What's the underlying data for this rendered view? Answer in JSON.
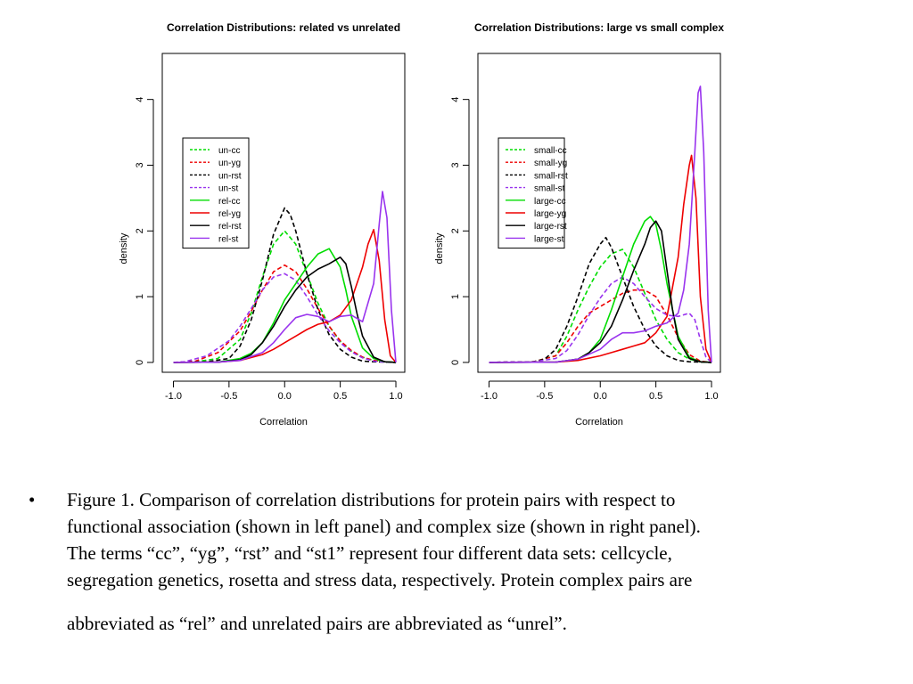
{
  "chart_data": [
    {
      "type": "line",
      "title": "Correlation Distributions: related vs unrelated",
      "xlabel": "Correlation",
      "ylabel": "density",
      "xlim": [
        -1.1,
        1.08
      ],
      "ylim": [
        -0.15,
        4.7
      ],
      "xticks": [
        -1.0,
        -0.5,
        0.0,
        0.5,
        1.0
      ],
      "xtick_labels": [
        "-1.0",
        "-0.5",
        "0.0",
        "0.5",
        "1.0"
      ],
      "yticks": [
        0,
        1,
        2,
        3,
        4
      ],
      "ytick_labels": [
        "0",
        "1",
        "2",
        "3",
        "4"
      ],
      "legend_position": "left",
      "series": [
        {
          "name": "un-cc",
          "color": "#00dd00",
          "dashed": true,
          "x": [
            -1.0,
            -0.8,
            -0.6,
            -0.4,
            -0.3,
            -0.2,
            -0.1,
            0.0,
            0.1,
            0.2,
            0.3,
            0.4,
            0.5,
            0.6,
            0.7,
            0.8,
            0.9,
            1.0
          ],
          "y": [
            0,
            0.01,
            0.06,
            0.35,
            0.75,
            1.3,
            1.8,
            2.0,
            1.8,
            1.35,
            0.9,
            0.55,
            0.32,
            0.17,
            0.08,
            0.03,
            0.01,
            0
          ]
        },
        {
          "name": "un-yg",
          "color": "#ee0000",
          "dashed": true,
          "x": [
            -1.0,
            -0.8,
            -0.6,
            -0.4,
            -0.3,
            -0.2,
            -0.1,
            0.0,
            0.1,
            0.2,
            0.3,
            0.4,
            0.5,
            0.6,
            0.7,
            0.8,
            0.9,
            1.0
          ],
          "y": [
            0,
            0.02,
            0.15,
            0.48,
            0.78,
            1.1,
            1.38,
            1.48,
            1.38,
            1.12,
            0.82,
            0.55,
            0.33,
            0.18,
            0.08,
            0.03,
            0.01,
            0
          ]
        },
        {
          "name": "un-rst",
          "color": "#000000",
          "dashed": true,
          "x": [
            -1.0,
            -0.7,
            -0.5,
            -0.4,
            -0.3,
            -0.2,
            -0.1,
            0.0,
            0.05,
            0.1,
            0.2,
            0.3,
            0.4,
            0.5,
            0.6,
            0.7,
            0.8,
            1.0
          ],
          "y": [
            0,
            0.01,
            0.06,
            0.25,
            0.65,
            1.25,
            1.95,
            2.35,
            2.25,
            2.0,
            1.35,
            0.8,
            0.42,
            0.2,
            0.08,
            0.02,
            0.01,
            0
          ]
        },
        {
          "name": "un-st",
          "color": "#9933ee",
          "dashed": true,
          "x": [
            -1.0,
            -0.9,
            -0.7,
            -0.5,
            -0.4,
            -0.3,
            -0.2,
            -0.1,
            0.0,
            0.1,
            0.2,
            0.3,
            0.4,
            0.5,
            0.6,
            0.7,
            0.8,
            0.9,
            1.0
          ],
          "y": [
            0,
            0.01,
            0.1,
            0.33,
            0.55,
            0.82,
            1.1,
            1.3,
            1.35,
            1.25,
            1.0,
            0.72,
            0.48,
            0.3,
            0.16,
            0.07,
            0.02,
            0.005,
            0
          ]
        },
        {
          "name": "rel-cc",
          "color": "#00dd00",
          "dashed": false,
          "x": [
            -1.0,
            -0.6,
            -0.4,
            -0.3,
            -0.2,
            -0.1,
            0.0,
            0.1,
            0.2,
            0.3,
            0.4,
            0.5,
            0.55,
            0.6,
            0.7,
            0.8,
            0.9,
            1.0
          ],
          "y": [
            0,
            0.005,
            0.06,
            0.14,
            0.3,
            0.6,
            0.95,
            1.2,
            1.45,
            1.65,
            1.73,
            1.45,
            1.1,
            0.7,
            0.22,
            0.06,
            0.01,
            0
          ]
        },
        {
          "name": "rel-yg",
          "color": "#ee0000",
          "dashed": false,
          "x": [
            -1.0,
            -0.6,
            -0.4,
            -0.2,
            -0.1,
            0.0,
            0.1,
            0.2,
            0.3,
            0.4,
            0.5,
            0.6,
            0.7,
            0.75,
            0.8,
            0.85,
            0.9,
            0.95,
            1.0
          ],
          "y": [
            0,
            0.005,
            0.03,
            0.12,
            0.2,
            0.3,
            0.4,
            0.5,
            0.58,
            0.62,
            0.72,
            0.95,
            1.45,
            1.8,
            2.02,
            1.55,
            0.65,
            0.1,
            0
          ]
        },
        {
          "name": "rel-rst",
          "color": "#000000",
          "dashed": false,
          "x": [
            -1.0,
            -0.6,
            -0.4,
            -0.3,
            -0.2,
            -0.1,
            0.0,
            0.1,
            0.2,
            0.3,
            0.4,
            0.5,
            0.55,
            0.6,
            0.65,
            0.7,
            0.8,
            0.9,
            1.0
          ],
          "y": [
            0,
            0.005,
            0.04,
            0.12,
            0.3,
            0.55,
            0.85,
            1.1,
            1.3,
            1.42,
            1.5,
            1.6,
            1.5,
            1.15,
            0.75,
            0.4,
            0.08,
            0.01,
            0
          ]
        },
        {
          "name": "rel-st",
          "color": "#9933ee",
          "dashed": false,
          "x": [
            -1.0,
            -0.6,
            -0.4,
            -0.2,
            -0.1,
            0.0,
            0.1,
            0.2,
            0.3,
            0.4,
            0.5,
            0.6,
            0.7,
            0.8,
            0.85,
            0.88,
            0.92,
            0.96,
            1.0
          ],
          "y": [
            0,
            0.005,
            0.03,
            0.15,
            0.3,
            0.5,
            0.68,
            0.73,
            0.7,
            0.62,
            0.7,
            0.72,
            0.62,
            1.2,
            2.1,
            2.6,
            2.2,
            0.8,
            0
          ]
        }
      ]
    },
    {
      "type": "line",
      "title": "Correlation Distributions: large vs small complex",
      "xlabel": "Correlation",
      "ylabel": "density",
      "xlim": [
        -1.1,
        1.08
      ],
      "ylim": [
        -0.15,
        4.7
      ],
      "xticks": [
        -1.0,
        -0.5,
        0.0,
        0.5,
        1.0
      ],
      "xtick_labels": [
        "-1.0",
        "-0.5",
        "0.0",
        "0.5",
        "1.0"
      ],
      "yticks": [
        0,
        1,
        2,
        3,
        4
      ],
      "ytick_labels": [
        "0",
        "1",
        "2",
        "3",
        "4"
      ],
      "legend_position": "left",
      "series": [
        {
          "name": "small-cc",
          "color": "#00dd00",
          "dashed": true,
          "x": [
            -1.0,
            -0.6,
            -0.4,
            -0.3,
            -0.2,
            -0.1,
            0.0,
            0.1,
            0.2,
            0.3,
            0.4,
            0.5,
            0.6,
            0.7,
            0.8,
            0.9,
            1.0
          ],
          "y": [
            0,
            0.01,
            0.1,
            0.4,
            0.8,
            1.15,
            1.45,
            1.65,
            1.72,
            1.45,
            1.05,
            0.65,
            0.35,
            0.15,
            0.05,
            0.01,
            0
          ]
        },
        {
          "name": "small-yg",
          "color": "#ee0000",
          "dashed": true,
          "x": [
            -1.0,
            -0.6,
            -0.4,
            -0.3,
            -0.2,
            -0.1,
            0.0,
            0.1,
            0.2,
            0.3,
            0.4,
            0.5,
            0.6,
            0.7,
            0.8,
            0.9,
            1.0
          ],
          "y": [
            0,
            0.01,
            0.1,
            0.3,
            0.55,
            0.75,
            0.85,
            0.95,
            1.05,
            1.1,
            1.1,
            1.0,
            0.72,
            0.38,
            0.12,
            0.02,
            0
          ]
        },
        {
          "name": "small-rst",
          "color": "#000000",
          "dashed": true,
          "x": [
            -1.0,
            -0.6,
            -0.5,
            -0.4,
            -0.3,
            -0.2,
            -0.1,
            0.0,
            0.05,
            0.1,
            0.2,
            0.3,
            0.4,
            0.5,
            0.6,
            0.7,
            0.8,
            1.0
          ],
          "y": [
            0,
            0.01,
            0.05,
            0.2,
            0.55,
            1.0,
            1.5,
            1.8,
            1.9,
            1.75,
            1.3,
            0.85,
            0.5,
            0.25,
            0.1,
            0.03,
            0.01,
            0
          ]
        },
        {
          "name": "small-st",
          "color": "#9933ee",
          "dashed": true,
          "x": [
            -1.0,
            -0.6,
            -0.4,
            -0.3,
            -0.2,
            -0.1,
            0.0,
            0.1,
            0.2,
            0.3,
            0.4,
            0.5,
            0.6,
            0.7,
            0.8,
            0.85,
            0.9,
            0.95,
            1.0
          ],
          "y": [
            0,
            0.01,
            0.06,
            0.18,
            0.42,
            0.72,
            0.98,
            1.2,
            1.3,
            1.2,
            1.0,
            0.82,
            0.72,
            0.7,
            0.75,
            0.65,
            0.35,
            0.08,
            0
          ]
        },
        {
          "name": "large-cc",
          "color": "#00dd00",
          "dashed": false,
          "x": [
            -1.0,
            -0.4,
            -0.2,
            -0.1,
            0.0,
            0.1,
            0.2,
            0.3,
            0.4,
            0.45,
            0.5,
            0.55,
            0.6,
            0.7,
            0.8,
            0.9,
            1.0
          ],
          "y": [
            0,
            0.005,
            0.05,
            0.15,
            0.35,
            0.8,
            1.3,
            1.8,
            2.15,
            2.22,
            2.1,
            1.7,
            1.2,
            0.4,
            0.08,
            0.01,
            0
          ]
        },
        {
          "name": "large-yg",
          "color": "#ee0000",
          "dashed": false,
          "x": [
            -1.0,
            -0.4,
            -0.2,
            0.0,
            0.1,
            0.2,
            0.3,
            0.4,
            0.5,
            0.6,
            0.7,
            0.75,
            0.8,
            0.82,
            0.86,
            0.9,
            0.95,
            1.0
          ],
          "y": [
            0,
            0.005,
            0.03,
            0.1,
            0.15,
            0.2,
            0.25,
            0.3,
            0.45,
            0.7,
            1.6,
            2.4,
            3.0,
            3.15,
            2.5,
            1.0,
            0.2,
            0
          ]
        },
        {
          "name": "large-rst",
          "color": "#000000",
          "dashed": false,
          "x": [
            -1.0,
            -0.4,
            -0.2,
            -0.1,
            0.0,
            0.1,
            0.2,
            0.3,
            0.4,
            0.45,
            0.5,
            0.55,
            0.6,
            0.65,
            0.7,
            0.8,
            0.9,
            1.0
          ],
          "y": [
            0,
            0.005,
            0.05,
            0.15,
            0.3,
            0.55,
            0.95,
            1.4,
            1.8,
            2.05,
            2.15,
            2.0,
            1.4,
            0.8,
            0.35,
            0.06,
            0.01,
            0
          ]
        },
        {
          "name": "large-st",
          "color": "#9933ee",
          "dashed": false,
          "x": [
            -1.0,
            -0.4,
            -0.2,
            0.0,
            0.1,
            0.2,
            0.3,
            0.4,
            0.5,
            0.6,
            0.7,
            0.75,
            0.8,
            0.85,
            0.88,
            0.9,
            0.93,
            0.97,
            1.0
          ],
          "y": [
            0,
            0.005,
            0.05,
            0.2,
            0.35,
            0.45,
            0.45,
            0.48,
            0.55,
            0.6,
            0.75,
            1.1,
            1.8,
            3.2,
            4.1,
            4.2,
            3.2,
            0.8,
            0
          ]
        }
      ]
    }
  ],
  "caption": {
    "bullet": "•",
    "lines": [
      "Figure 1. Comparison of correlation distributions for protein pairs with respect to",
      "functional association (shown in left panel) and complex size (shown in right panel).",
      "The terms “cc”, “yg”, “rst” and “st1” represent four different data sets: cellcycle,",
      "segregation genetics, rosetta and stress data, respectively. Protein complex pairs are",
      "abbreviated as “rel” and unrelated pairs are abbreviated as “unrel”."
    ]
  }
}
